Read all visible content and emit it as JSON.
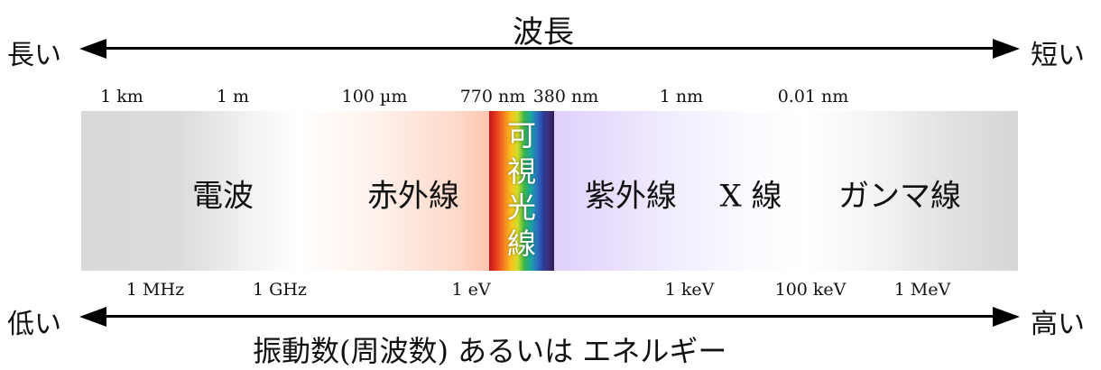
{
  "top": {
    "title": "波長",
    "left_end": "長い",
    "right_end": "短い"
  },
  "bottom": {
    "title": "振動数(周波数) あるいは エネルギー",
    "left_end": "低い",
    "right_end": "高い"
  },
  "wavelength_scale": [
    "1 km",
    "1 m",
    "100 µm",
    "770 nm",
    "380 nm",
    "1 nm",
    "0.01 nm"
  ],
  "frequency_energy_scale": [
    "1 MHz",
    "1 GHz",
    "1 eV",
    "1 keV",
    "100 keV",
    "1 MeV"
  ],
  "bands": {
    "radio": "電波",
    "infrared": "赤外線",
    "visible": [
      "可",
      "視",
      "光",
      "線"
    ],
    "ultraviolet": "紫外線",
    "xray": "X 線",
    "gamma": "ガンマ線"
  }
}
